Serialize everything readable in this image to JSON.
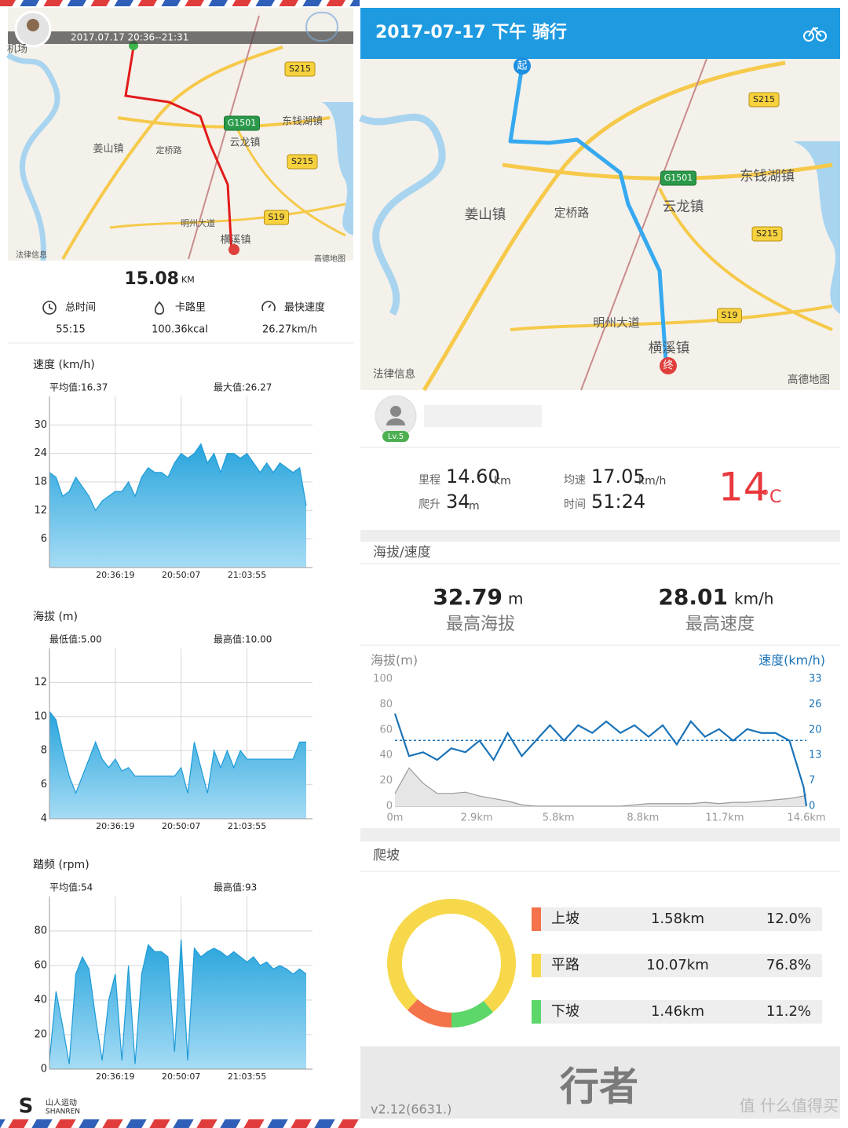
{
  "left": {
    "map": {
      "time_range": "2017.07.17 20:36--21:31",
      "labels": [
        "机场",
        "姜山镇",
        "云龙镇",
        "东钱湖镇",
        "横溪镇",
        "定桥路",
        "明州大道",
        "S215",
        "S215",
        "G1501",
        "S19",
        "法律信息",
        "高德地图"
      ]
    },
    "distance": "15.08",
    "distance_unit": "KM",
    "stats": [
      {
        "label": "总时间",
        "value": "55:15"
      },
      {
        "label": "卡路里",
        "value": "100.36kcal"
      },
      {
        "label": "最快速度",
        "value": "26.27km/h"
      }
    ],
    "brand": "山人运动",
    "brand_en": "SHANREN"
  },
  "right": {
    "header": "2017-07-17 下午 骑行",
    "map": {
      "start": "起",
      "end": "终",
      "labels": [
        "姜山镇",
        "云龙镇",
        "东钱湖镇",
        "横溪镇",
        "定桥路",
        "明州大道",
        "S215",
        "S215",
        "G1501",
        "S19",
        "法律信息",
        "高德地图"
      ]
    },
    "level": "Lv.5",
    "stats": {
      "distance": {
        "label": "里程",
        "value": "14.60",
        "unit": "km"
      },
      "climb": {
        "label": "爬升",
        "value": "34",
        "unit": "m"
      },
      "avg_speed": {
        "label": "均速",
        "value": 17.05,
        "unit": "km/h"
      },
      "time": {
        "label": "时间",
        "value": "51:24"
      }
    },
    "temperature": {
      "value": 14,
      "unit": "°C"
    },
    "section_elevation": "海拔/速度",
    "max_altitude": {
      "value": "32.79",
      "unit": "m",
      "label": "最高海拔"
    },
    "max_speed": {
      "value": "28.01",
      "unit": "km/h",
      "label": "最高速度"
    },
    "section_climb": "爬坡",
    "climb_distances": [
      "1.58km",
      "10.07km",
      "1.46km"
    ],
    "logo": "行者",
    "version": "v2.12(6631.)"
  },
  "watermark": "值 什么值得买",
  "chart_data": [
    {
      "type": "area",
      "title": "速度 (km/h)",
      "annotations": [
        "平均值:16.37",
        "最大值:26.27"
      ],
      "color": "#1e9bd7",
      "values": [
        20,
        19,
        15,
        16,
        19,
        17,
        15,
        12,
        14,
        15,
        16,
        16,
        18,
        15,
        19,
        21,
        20,
        20,
        19,
        22,
        24,
        23,
        24,
        26,
        22,
        24,
        20,
        24,
        24,
        23,
        24,
        22,
        20,
        22,
        20,
        22,
        21,
        20,
        21,
        13
      ],
      "xlim": [
        0,
        39
      ],
      "xticks": [
        {
          "value": 10,
          "label": "20:36:19"
        },
        {
          "value": 20,
          "label": "20:50:07"
        },
        {
          "value": 30,
          "label": "21:03:55"
        }
      ],
      "ylim": [
        0,
        36
      ],
      "yticks": [
        6,
        12,
        18,
        24,
        30
      ],
      "grid": true
    },
    {
      "type": "area",
      "title": "海拔 (m)",
      "annotations": [
        "最低值:5.00",
        "最高值:10.00"
      ],
      "color": "#1e9bd7",
      "values": [
        10.3,
        9.8,
        8,
        6.5,
        5.5,
        6.5,
        7.5,
        8.5,
        7.5,
        7,
        7.5,
        6.8,
        7,
        6.5,
        6.5,
        6.5,
        6.5,
        6.5,
        6.5,
        6.5,
        7,
        5.5,
        8.5,
        7,
        5.5,
        8,
        7,
        8,
        7,
        8,
        7.5,
        7.5,
        7.5,
        7.5,
        7.5,
        7.5,
        7.5,
        7.5,
        8.5,
        8.5
      ],
      "xlim": [
        0,
        39
      ],
      "xticks": [
        {
          "value": 10,
          "label": "20:36:19"
        },
        {
          "value": 20,
          "label": "20:50:07"
        },
        {
          "value": 30,
          "label": "21:03:55"
        }
      ],
      "ylim": [
        4,
        14
      ],
      "yticks": [
        4,
        6,
        8,
        10,
        12
      ],
      "grid": true
    },
    {
      "type": "area",
      "title": "踏频 (rpm)",
      "annotations": [
        "平均值:54",
        "最高值:93"
      ],
      "color": "#1e9bd7",
      "values": [
        5,
        45,
        25,
        3,
        55,
        65,
        58,
        30,
        5,
        40,
        55,
        5,
        60,
        3,
        55,
        72,
        68,
        68,
        65,
        10,
        75,
        5,
        70,
        65,
        68,
        70,
        68,
        65,
        68,
        65,
        62,
        65,
        60,
        62,
        58,
        60,
        58,
        55,
        58,
        55
      ],
      "xlim": [
        0,
        39
      ],
      "xticks": [
        {
          "value": 10,
          "label": "20:36:19"
        },
        {
          "value": 20,
          "label": "20:50:07"
        },
        {
          "value": 30,
          "label": "21:03:55"
        }
      ],
      "ylim": [
        0,
        100
      ],
      "yticks": [
        0,
        20,
        40,
        60,
        80
      ],
      "grid": true
    },
    {
      "type": "dual_line",
      "y_label": "海拔(m)",
      "y2_label": "速度(km/h)",
      "x": [
        0,
        0.5,
        1,
        1.5,
        2,
        2.5,
        3,
        3.5,
        4,
        4.5,
        5,
        5.5,
        6,
        6.5,
        7,
        7.5,
        8,
        8.5,
        9,
        9.5,
        10,
        10.5,
        11,
        11.5,
        12,
        12.5,
        13,
        13.5,
        14,
        14.5,
        14.6
      ],
      "xlim": [
        0,
        14.6
      ],
      "xticks": [
        {
          "value": 0,
          "label": "0m"
        },
        {
          "value": 2.9,
          "label": "2.9km"
        },
        {
          "value": 5.8,
          "label": "5.8km"
        },
        {
          "value": 8.8,
          "label": "8.8km"
        },
        {
          "value": 11.7,
          "label": "11.7km"
        },
        {
          "value": 14.6,
          "label": "14.6km"
        }
      ],
      "ylim": [
        0,
        100
      ],
      "yticks": [
        0,
        20,
        40,
        60,
        80,
        100
      ],
      "y2lim": [
        0,
        33
      ],
      "y2ticks": [
        0,
        {
          "value": 6.6,
          "label": "7"
        },
        {
          "value": 13.2,
          "label": "13"
        },
        {
          "value": 19.8,
          "label": "20"
        },
        {
          "value": 26.4,
          "label": "26"
        },
        33
      ],
      "grid": false,
      "series": [
        {
          "color": "#9a9a9a",
          "values": [
            10,
            30,
            18,
            10,
            10,
            11,
            8,
            6,
            4,
            1,
            0,
            0,
            0,
            0,
            0,
            0,
            0,
            1,
            2,
            2,
            2,
            2,
            3,
            2,
            3,
            3,
            4,
            5,
            6,
            8,
            9
          ]
        },
        {
          "color": "#1a73b8",
          "axis": "y2",
          "values": [
            24,
            13,
            14,
            12,
            15,
            14,
            17,
            12,
            19,
            13,
            17,
            21,
            17,
            21,
            19,
            22,
            19,
            21,
            18,
            21,
            16,
            22,
            18,
            20,
            17,
            20,
            19,
            19,
            17,
            5,
            0
          ]
        }
      ]
    },
    {
      "type": "donut",
      "categories": [
        "上坡",
        "平路",
        "下坡"
      ],
      "values": [
        12.0,
        76.8,
        11.2
      ],
      "value_labels": [
        "12.0%",
        "76.8%",
        "11.2%"
      ],
      "colors": [
        "#f4734a",
        "#f7d84a",
        "#5dd66a"
      ]
    }
  ]
}
